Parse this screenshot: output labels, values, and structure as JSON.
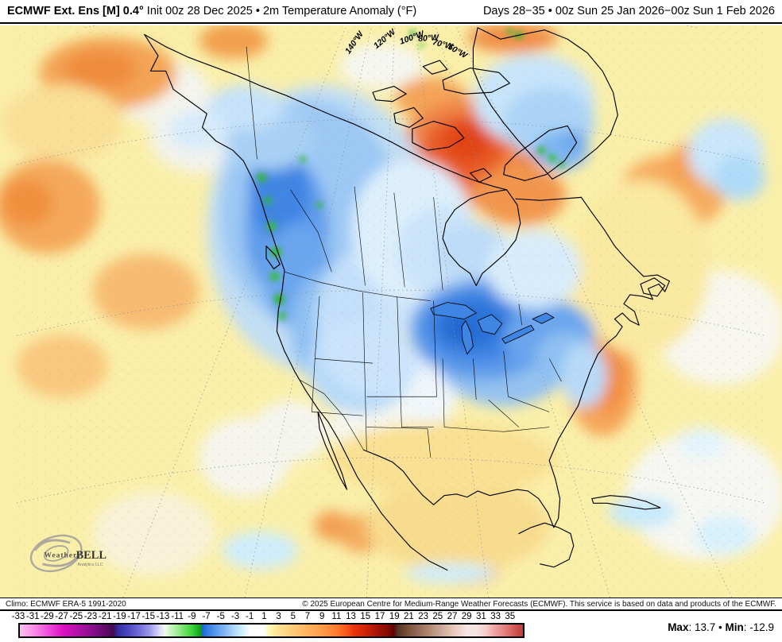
{
  "header": {
    "left_bold": "ECMWF Ext. Ens [M] 0.4",
    "left_degree": "°",
    "left_rest": " Init 00z 28 Dec 2025 • 2m Temperature Anomaly (°F)",
    "right": "Days 28−35 • 00z Sun 25 Jan 2026−00z Sun 1 Feb 2026"
  },
  "map": {
    "lon_labels": [
      "140°W",
      "120°W",
      "100°W",
      "80°W",
      "70°W",
      "50°W"
    ],
    "logo": {
      "weather": "Weather",
      "bell": "BELL",
      "tagline": "Analytics LLC"
    }
  },
  "footer": {
    "climo": "Climo: ECMWF ERA-5 1991-2020",
    "copyright": "© 2025 European Centre for Medium-Range Weather Forecasts (ECMWF). This service is based on data and products of the ECMWF."
  },
  "colorbar": {
    "domain": [
      -33,
      37
    ],
    "labels": [
      -33,
      -31,
      -29,
      -27,
      -25,
      -23,
      -21,
      -19,
      -17,
      -15,
      -13,
      -11,
      -9,
      -7,
      -5,
      -3,
      -1,
      1,
      3,
      5,
      7,
      9,
      11,
      13,
      15,
      17,
      19,
      21,
      23,
      25,
      27,
      29,
      31,
      33,
      35
    ],
    "stops": [
      {
        "v": -33,
        "c": "#fbc0ee"
      },
      {
        "v": -31,
        "c": "#f88ce8"
      },
      {
        "v": -29,
        "c": "#f14bdc"
      },
      {
        "v": -27,
        "c": "#dc10c5"
      },
      {
        "v": -25,
        "c": "#b20faa"
      },
      {
        "v": -23,
        "c": "#8a0e8e"
      },
      {
        "v": -21,
        "c": "#5e0a68"
      },
      {
        "v": -20,
        "c": "#41094f"
      },
      {
        "v": -19.4,
        "c": "#322a9e"
      },
      {
        "v": -18,
        "c": "#4a46c2"
      },
      {
        "v": -16.5,
        "c": "#6f6ad6"
      },
      {
        "v": -15,
        "c": "#9b95e8"
      },
      {
        "v": -14,
        "c": "#c9c5f5"
      },
      {
        "v": -13.3,
        "c": "#e6e4fb"
      },
      {
        "v": -12.8,
        "c": "#edfbea"
      },
      {
        "v": -12,
        "c": "#c7f4c0"
      },
      {
        "v": -11,
        "c": "#9bec92"
      },
      {
        "v": -10,
        "c": "#68e060"
      },
      {
        "v": -9,
        "c": "#3bd23b"
      },
      {
        "v": -8.3,
        "c": "#1fb426"
      },
      {
        "v": -7.8,
        "c": "#12991a"
      },
      {
        "v": -7.6,
        "c": "#1c64ce"
      },
      {
        "v": -7,
        "c": "#2e7be0"
      },
      {
        "v": -6,
        "c": "#5093e8"
      },
      {
        "v": -5,
        "c": "#70acf0"
      },
      {
        "v": -4,
        "c": "#93c4f5"
      },
      {
        "v": -3,
        "c": "#b6dcfa"
      },
      {
        "v": -2,
        "c": "#cff0fd"
      },
      {
        "v": -1,
        "c": "#ffffff"
      },
      {
        "v": 1,
        "c": "#ffffff"
      },
      {
        "v": 1.6,
        "c": "#fef9b0"
      },
      {
        "v": 3,
        "c": "#fde292"
      },
      {
        "v": 5,
        "c": "#fdcb76"
      },
      {
        "v": 7,
        "c": "#ffb35c"
      },
      {
        "v": 9,
        "c": "#ff9c48"
      },
      {
        "v": 11,
        "c": "#ff7c30"
      },
      {
        "v": 12.5,
        "c": "#f8551c"
      },
      {
        "v": 13.5,
        "c": "#e8330d"
      },
      {
        "v": 15,
        "c": "#d22408"
      },
      {
        "v": 16,
        "c": "#b81b06"
      },
      {
        "v": 17,
        "c": "#9d1205"
      },
      {
        "v": 18,
        "c": "#8b0d03"
      },
      {
        "v": 19,
        "c": "#5e0402"
      },
      {
        "v": 19.6,
        "c": "#553526"
      },
      {
        "v": 21,
        "c": "#7a5136"
      },
      {
        "v": 22.3,
        "c": "#93675a"
      },
      {
        "v": 23.5,
        "c": "#a87f66"
      },
      {
        "v": 24.6,
        "c": "#bb9780"
      },
      {
        "v": 25.7,
        "c": "#cba99a"
      },
      {
        "v": 26.8,
        "c": "#ddbfae"
      },
      {
        "v": 28,
        "c": "#efd2cb"
      },
      {
        "v": 29.3,
        "c": "#f5e6e3"
      },
      {
        "v": 30.6,
        "c": "#f3e3e1"
      },
      {
        "v": 31.8,
        "c": "#f5cfcd"
      },
      {
        "v": 33,
        "c": "#f1a4a3"
      },
      {
        "v": 34,
        "c": "#e58c8c"
      },
      {
        "v": 35.3,
        "c": "#da6765"
      },
      {
        "v": 36.3,
        "c": "#c94b48"
      },
      {
        "v": 37,
        "c": "#bf3f3c"
      }
    ]
  },
  "stats": {
    "max_label": "Max",
    "max_value": ": 13.7 ",
    "sep": "•",
    "min_label": " Min",
    "min_value": ": -12.9"
  }
}
